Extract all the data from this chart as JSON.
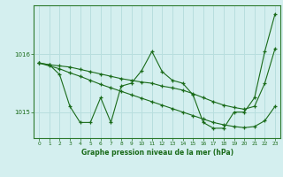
{
  "title": "Graphe pression niveau de la mer (hPa)",
  "bg_color": "#d4efef",
  "grid_color": "#b8dede",
  "line_color": "#1a6b1a",
  "xlim": [
    -0.5,
    23.5
  ],
  "ylim": [
    1014.55,
    1016.85
  ],
  "yticks": [
    1015,
    1016
  ],
  "xticks": [
    0,
    1,
    2,
    3,
    4,
    5,
    6,
    7,
    8,
    9,
    10,
    11,
    12,
    13,
    14,
    15,
    16,
    17,
    18,
    19,
    20,
    21,
    22,
    23
  ],
  "y_zigzag": [
    1015.85,
    1015.82,
    1015.65,
    1015.1,
    1014.82,
    1014.82,
    1015.25,
    1014.82,
    1015.45,
    1015.5,
    1015.72,
    1016.05,
    1015.7,
    1015.55,
    1015.5,
    1015.3,
    1014.82,
    1014.72,
    1014.72,
    1015.0,
    1015.0,
    1015.25,
    1016.05,
    1016.7
  ],
  "y_trend_upper": [
    1015.85,
    1015.82,
    1015.8,
    1015.78,
    1015.74,
    1015.7,
    1015.66,
    1015.62,
    1015.58,
    1015.55,
    1015.52,
    1015.5,
    1015.45,
    1015.42,
    1015.38,
    1015.32,
    1015.25,
    1015.18,
    1015.12,
    1015.08,
    1015.05,
    1015.1,
    1015.5,
    1016.1
  ],
  "y_trend_lower": [
    1015.85,
    1015.8,
    1015.75,
    1015.68,
    1015.62,
    1015.55,
    1015.48,
    1015.42,
    1015.36,
    1015.3,
    1015.24,
    1015.18,
    1015.12,
    1015.06,
    1015.0,
    1014.94,
    1014.88,
    1014.82,
    1014.78,
    1014.75,
    1014.73,
    1014.75,
    1014.85,
    1015.1
  ]
}
